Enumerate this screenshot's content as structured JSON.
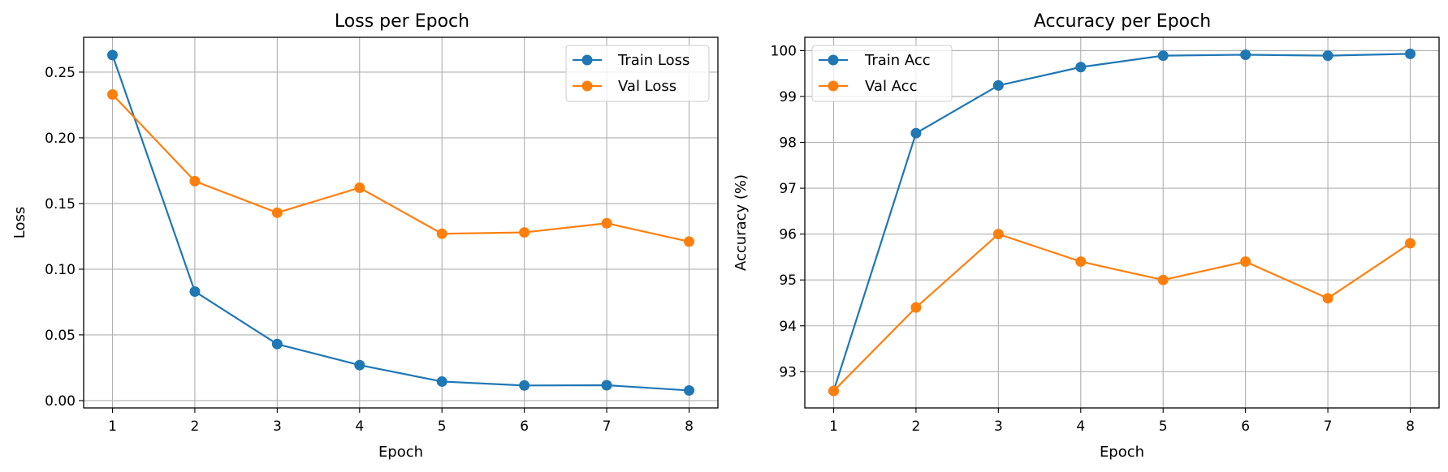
{
  "chart_data": [
    {
      "type": "line",
      "title": "Loss per Epoch",
      "xlabel": "Epoch",
      "ylabel": "Loss",
      "x": [
        1,
        2,
        3,
        4,
        5,
        6,
        7,
        8
      ],
      "xlim": [
        0.65,
        8.35
      ],
      "ylim": [
        -0.0056,
        0.2765
      ],
      "xticks": [
        "1",
        "2",
        "3",
        "4",
        "5",
        "6",
        "7",
        "8"
      ],
      "yticks": [
        {
          "value": 0.0,
          "label": "0.00"
        },
        {
          "value": 0.05,
          "label": "0.05"
        },
        {
          "value": 0.1,
          "label": "0.10"
        },
        {
          "value": 0.15,
          "label": "0.15"
        },
        {
          "value": 0.2,
          "label": "0.20"
        },
        {
          "value": 0.25,
          "label": "0.25"
        }
      ],
      "grid": true,
      "legend_position": "top-right",
      "series": [
        {
          "name": "Train Loss",
          "color": "#1f77b4",
          "values": [
            0.263,
            0.083,
            0.043,
            0.027,
            0.0145,
            0.0115,
            0.0117,
            0.0077
          ]
        },
        {
          "name": "Val Loss",
          "color": "#ff7f0e",
          "values": [
            0.233,
            0.167,
            0.143,
            0.162,
            0.127,
            0.128,
            0.135,
            0.121
          ]
        }
      ]
    },
    {
      "type": "line",
      "title": "Accuracy per Epoch",
      "xlabel": "Epoch",
      "ylabel": "Accuracy (%)",
      "x": [
        1,
        2,
        3,
        4,
        5,
        6,
        7,
        8
      ],
      "xlim": [
        0.65,
        8.35
      ],
      "ylim": [
        92.21,
        100.29
      ],
      "xticks": [
        "1",
        "2",
        "3",
        "4",
        "5",
        "6",
        "7",
        "8"
      ],
      "yticks": [
        {
          "value": 93,
          "label": "93"
        },
        {
          "value": 94,
          "label": "94"
        },
        {
          "value": 95,
          "label": "95"
        },
        {
          "value": 96,
          "label": "96"
        },
        {
          "value": 97,
          "label": "97"
        },
        {
          "value": 98,
          "label": "98"
        },
        {
          "value": 99,
          "label": "99"
        },
        {
          "value": 100,
          "label": "100"
        }
      ],
      "grid": true,
      "legend_position": "top-left",
      "series": [
        {
          "name": "Train Acc",
          "color": "#1f77b4",
          "values": [
            92.58,
            98.2,
            99.24,
            99.64,
            99.89,
            99.91,
            99.89,
            99.93
          ]
        },
        {
          "name": "Val Acc",
          "color": "#ff7f0e",
          "values": [
            92.58,
            94.4,
            96.0,
            95.4,
            95.0,
            95.4,
            94.6,
            95.8
          ]
        }
      ]
    }
  ]
}
